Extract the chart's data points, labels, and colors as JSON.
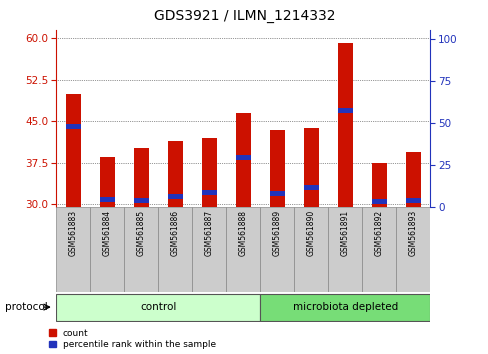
{
  "title": "GDS3921 / ILMN_1214332",
  "samples": [
    "GSM561883",
    "GSM561884",
    "GSM561885",
    "GSM561886",
    "GSM561887",
    "GSM561888",
    "GSM561889",
    "GSM561890",
    "GSM561891",
    "GSM561892",
    "GSM561893"
  ],
  "count_values": [
    50.0,
    38.5,
    40.2,
    41.5,
    42.0,
    46.5,
    43.5,
    43.8,
    59.2,
    37.5,
    39.5
  ],
  "percentile_values": [
    44.0,
    30.8,
    30.7,
    31.5,
    32.2,
    38.5,
    32.0,
    33.0,
    47.0,
    30.5,
    30.7
  ],
  "baseline": 29.5,
  "ylim_left": [
    29.5,
    61.5
  ],
  "yticks_left": [
    30,
    37.5,
    45,
    52.5,
    60
  ],
  "ylim_right": [
    0,
    105
  ],
  "yticks_right": [
    0,
    25,
    50,
    75,
    100
  ],
  "bar_color": "#cc1100",
  "marker_color": "#2233bb",
  "bar_width": 0.45,
  "n_control": 6,
  "n_microbiota": 5,
  "control_label": "control",
  "microbiota_label": "microbiota depleted",
  "protocol_label": "protocol",
  "legend_count": "count",
  "legend_percentile": "percentile rank within the sample",
  "title_fontsize": 10,
  "axis_color_left": "#cc1100",
  "axis_color_right": "#2233bb",
  "control_box_color": "#ccffcc",
  "microbiota_box_color": "#77dd77",
  "grid_color": "#333333"
}
